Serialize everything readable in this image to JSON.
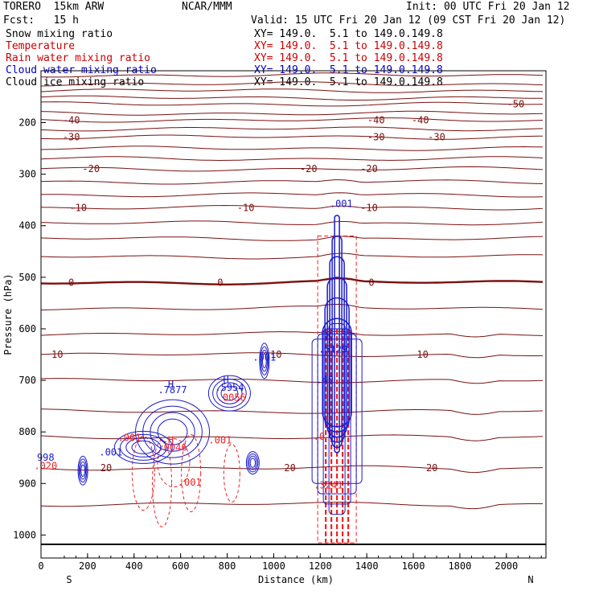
{
  "header": {
    "model": "TORERO  15km ARW",
    "center": "NCAR/MMM",
    "init": "Init: 00 UTC Fri 20 Jan 12",
    "fcst": "Fcst:   15 h",
    "valid": "Valid: 15 UTC Fri 20 Jan 12 (09 CST Fri 20 Jan 12)"
  },
  "legend": [
    {
      "name": "Snow mixing ratio",
      "xy": "XY= 149.0.  5.1 to 149.0.149.8",
      "color": "#000000"
    },
    {
      "name": "Temperature",
      "xy": "XY= 149.0.  5.1 to 149.0.149.8",
      "color": "#cc0000"
    },
    {
      "name": "Rain water mixing ratio",
      "xy": "XY= 149.0.  5.1 to 149.0.149.8",
      "color": "#cc0000"
    },
    {
      "name": "Cloud water mixing ratio",
      "xy": "XY= 149.0.  5.1 to 149.0.149.8",
      "color": "#0000cc"
    },
    {
      "name": "Cloud ice mixing ratio",
      "xy": "XY= 149.0.  5.1 to 149.0.149.8",
      "color": "#000000"
    }
  ],
  "chart_data": {
    "type": "contour",
    "xlabel": "Distance (km)",
    "ylabel": "Pressure (hPa)",
    "xlim": [
      0,
      2170
    ],
    "ylim": [
      1040,
      100
    ],
    "xticks": [
      0,
      200,
      400,
      600,
      800,
      1000,
      1200,
      1400,
      1600,
      1800,
      2000
    ],
    "yticks": [
      200,
      300,
      400,
      500,
      600,
      700,
      800,
      900,
      1000
    ],
    "x_end_labels": {
      "left": "S",
      "right": "N"
    },
    "colors": {
      "temperature": "#7a1010",
      "rain": "#ee2222",
      "cloud": "#1a1acc",
      "ground": "#000000"
    },
    "temperature_contours": [
      {
        "p": 108
      },
      {
        "p": 125
      },
      {
        "p": 138
      },
      {
        "p": 152
      },
      {
        "p": 164,
        "labels": [
          {
            "x": 2040,
            "t": "-50"
          }
        ]
      },
      {
        "p": 182
      },
      {
        "p": 195,
        "labels": [
          {
            "x": 130,
            "t": "-40"
          },
          {
            "x": 1440,
            "t": "-40"
          },
          {
            "x": 1630,
            "t": "-40"
          }
        ]
      },
      {
        "p": 212
      },
      {
        "p": 228,
        "labels": [
          {
            "x": 130,
            "t": "-30"
          },
          {
            "x": 1440,
            "t": "-30"
          },
          {
            "x": 1700,
            "t": "-30"
          }
        ]
      },
      {
        "p": 250
      },
      {
        "p": 270
      },
      {
        "p": 290,
        "labels": [
          {
            "x": 215,
            "t": "-20"
          },
          {
            "x": 1150,
            "t": "-20"
          },
          {
            "x": 1410,
            "t": "-20"
          }
        ]
      },
      {
        "p": 315
      },
      {
        "p": 340
      },
      {
        "p": 365,
        "labels": [
          {
            "x": 160,
            "t": "-10"
          },
          {
            "x": 880,
            "t": "-10"
          },
          {
            "x": 1410,
            "t": "-10"
          }
        ]
      },
      {
        "p": 395
      },
      {
        "p": 425
      },
      {
        "p": 460
      },
      {
        "p": 510,
        "thick": true,
        "labels": [
          {
            "x": 130,
            "t": "0"
          },
          {
            "x": 770,
            "t": "0"
          },
          {
            "x": 1420,
            "t": "0"
          }
        ]
      },
      {
        "p": 560
      },
      {
        "p": 610
      },
      {
        "p": 650,
        "labels": [
          {
            "x": 70,
            "t": "10"
          },
          {
            "x": 1010,
            "t": "10"
          },
          {
            "x": 1640,
            "t": "10"
          }
        ]
      },
      {
        "p": 700
      },
      {
        "p": 760
      },
      {
        "p": 810
      },
      {
        "p": 870,
        "labels": [
          {
            "x": 280,
            "t": "20"
          },
          {
            "x": 1070,
            "t": "20"
          },
          {
            "x": 1680,
            "t": "20"
          }
        ]
      },
      {
        "p": 940
      }
    ],
    "ground_p": 1018,
    "cloud_labels": [
      {
        "x": 960,
        "p": 662,
        "t": ".001"
      },
      {
        "x": 810,
        "p": 720,
        "t": ".5954"
      },
      {
        "x": 565,
        "p": 725,
        "t": ".7877"
      },
      {
        "x": 300,
        "p": 846,
        "t": ".001"
      },
      {
        "x": 1290,
        "p": 364,
        "t": ".001"
      },
      {
        "x": 1255,
        "p": 646,
        "t": ".5129"
      },
      {
        "x": 1220,
        "p": 705,
        "t": ".40"
      },
      {
        "x": 20,
        "p": 856,
        "t": "998"
      },
      {
        "x": 558,
        "p": 715,
        "t": "H"
      },
      {
        "x": 795,
        "p": 705,
        "t": "H"
      },
      {
        "x": 1235,
        "p": 620,
        "t": "H"
      }
    ],
    "rain_labels": [
      {
        "x": 20,
        "p": 872,
        "t": ".020"
      },
      {
        "x": 380,
        "p": 818,
        "t": ".001"
      },
      {
        "x": 565,
        "p": 836,
        "t": ".0046"
      },
      {
        "x": 818,
        "p": 740,
        "t": ".0056"
      },
      {
        "x": 770,
        "p": 822,
        "t": ".001"
      },
      {
        "x": 640,
        "p": 904,
        "t": ".001"
      },
      {
        "x": 1235,
        "p": 910,
        "t": ".3241"
      },
      {
        "x": 1195,
        "p": 815,
        "t": ".0"
      },
      {
        "x": 558,
        "p": 822,
        "t": "H"
      }
    ]
  }
}
